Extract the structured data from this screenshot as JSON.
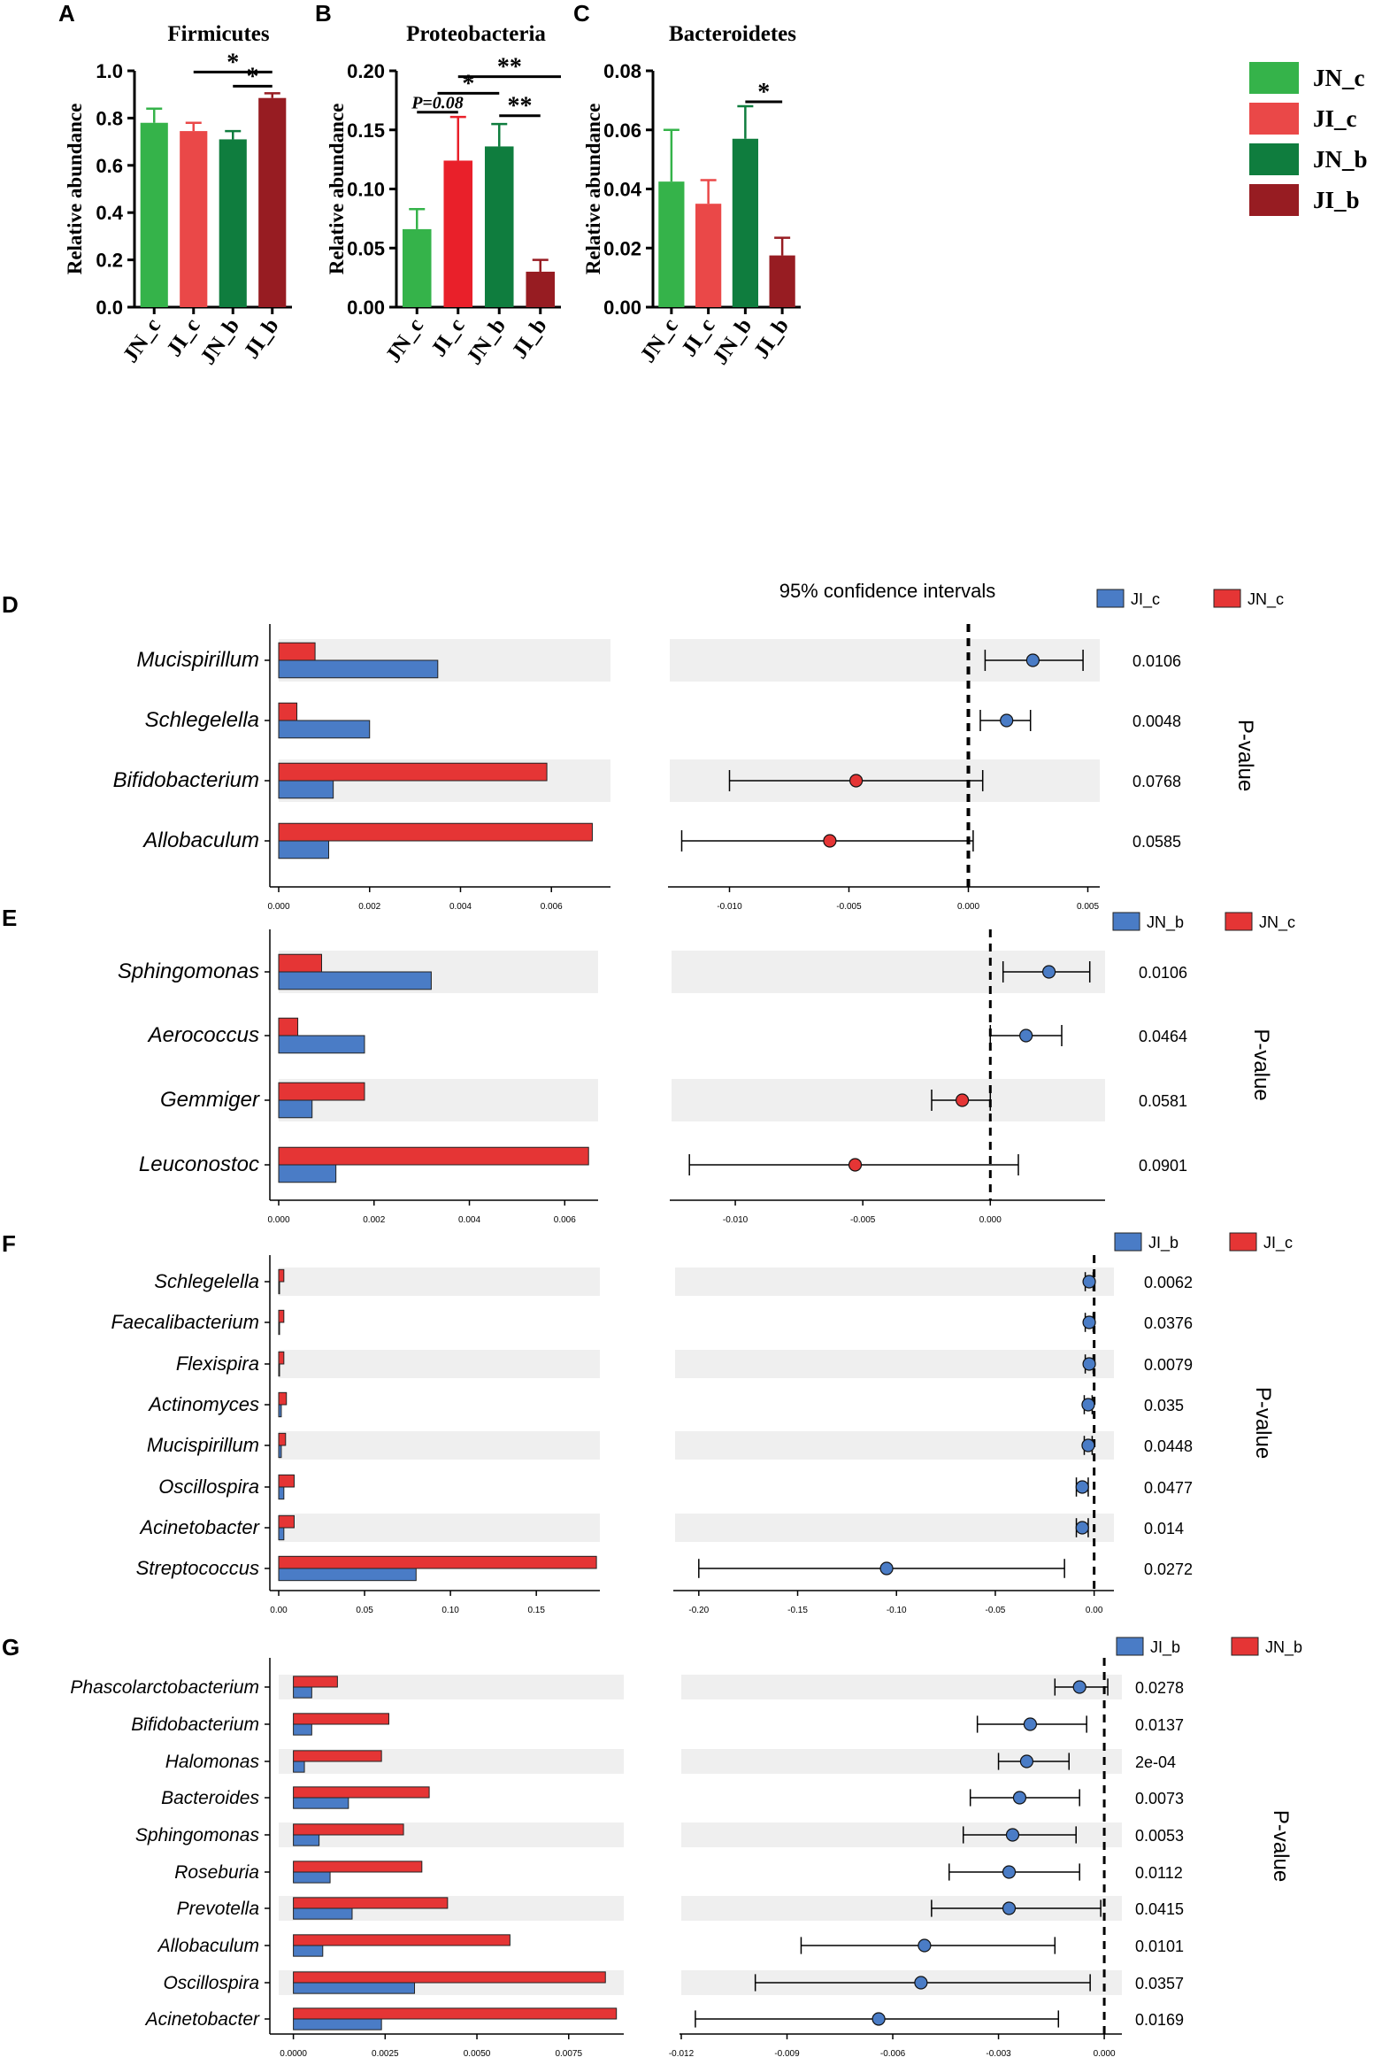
{
  "colors": {
    "JN_c": "#35b34a",
    "JI_c_top": "#ea4848",
    "JI_c_prot": "#e9202a",
    "JN_b": "#0f7d3e",
    "JI_b": "#971c22",
    "blue": "#4a7cc6",
    "red": "#e53535",
    "stripe": "#efefef"
  },
  "legend_top": [
    {
      "label": "JN_c",
      "color": "#35b34a"
    },
    {
      "label": "JI_c",
      "color": "#ea4848"
    },
    {
      "label": "JN_b",
      "color": "#0f7d3e"
    },
    {
      "label": "JI_b",
      "color": "#971c22"
    }
  ],
  "chart_data": [
    {
      "panel": "A",
      "type": "bar",
      "title": "Firmicutes",
      "ylabel": "Relative abundance",
      "categories": [
        "JN_c",
        "JI_c",
        "JN_b",
        "JI_b"
      ],
      "values": [
        0.78,
        0.745,
        0.71,
        0.885
      ],
      "errors": [
        0.06,
        0.035,
        0.035,
        0.02
      ],
      "bar_colors": [
        "#35b34a",
        "#ea4848",
        "#0f7d3e",
        "#971c22"
      ],
      "ylim": [
        0,
        1.0
      ],
      "yticks": [
        "0.0",
        "0.2",
        "0.4",
        "0.6",
        "0.8",
        "1.0"
      ],
      "annotations": [
        {
          "from": 1,
          "to": 3,
          "y": 0.995,
          "text": "*"
        },
        {
          "from": 2,
          "to": 3,
          "y": 0.935,
          "text": "*"
        }
      ]
    },
    {
      "panel": "B",
      "type": "bar",
      "title": "Proteobacteria",
      "ylabel": "Relative abundance",
      "categories": [
        "JN_c",
        "JI_c",
        "JN_b",
        "JI_b"
      ],
      "values": [
        0.066,
        0.124,
        0.136,
        0.03
      ],
      "errors": [
        0.017,
        0.037,
        0.019,
        0.01
      ],
      "bar_colors": [
        "#35b34a",
        "#e9202a",
        "#0f7d3e",
        "#971c22"
      ],
      "ylim": [
        0,
        0.2
      ],
      "yticks": [
        "0.00",
        "0.05",
        "0.10",
        "0.15",
        "0.20"
      ],
      "annotations": [
        {
          "from": 1,
          "to": 3.5,
          "y": 0.195,
          "text": "**"
        },
        {
          "from": 0.5,
          "to": 2,
          "y": 0.181,
          "text": "*"
        },
        {
          "from": 0,
          "to": 1,
          "y": 0.165,
          "text": "P=0.08"
        },
        {
          "from": 2,
          "to": 3,
          "y": 0.162,
          "text": "**"
        }
      ]
    },
    {
      "panel": "C",
      "type": "bar",
      "title": "Bacteroidetes",
      "ylabel": "Relative abundance",
      "categories": [
        "JN_c",
        "JI_c",
        "JN_b",
        "JI_b"
      ],
      "values": [
        0.0425,
        0.035,
        0.057,
        0.0175
      ],
      "errors": [
        0.0175,
        0.008,
        0.011,
        0.006
      ],
      "bar_colors": [
        "#35b34a",
        "#ea4848",
        "#0f7d3e",
        "#971c22"
      ],
      "ylim": [
        0,
        0.08
      ],
      "yticks": [
        "0.00",
        "0.02",
        "0.04",
        "0.06",
        "0.08"
      ],
      "annotations": [
        {
          "from": 2,
          "to": 3,
          "y": 0.0695,
          "text": "*"
        }
      ]
    },
    {
      "panel": "D",
      "type": "bar",
      "ci_title": "95% confidence intervals",
      "legend": [
        "JI_c",
        "JN_c"
      ],
      "p_axis_label": "P-value",
      "taxa": [
        "Mucispirillum",
        "Schlegelella",
        "Bifidobacterium",
        "Allobaculum"
      ],
      "blue_values": [
        0.0035,
        0.002,
        0.0012,
        0.0011
      ],
      "red_values": [
        0.0008,
        0.0004,
        0.0059,
        0.0069
      ],
      "bar_xlim": [
        0,
        0.0073
      ],
      "bar_xticks": [
        "0.000",
        "0.002",
        "0.004",
        "0.006"
      ],
      "bar_xtick_values": [
        0,
        0.002,
        0.004,
        0.006
      ],
      "ci_estimates": [
        0.0027,
        0.0016,
        -0.0047,
        -0.0058
      ],
      "ci_low": [
        0.0007,
        0.0005,
        -0.01,
        -0.012
      ],
      "ci_high": [
        0.0048,
        0.0026,
        0.0006,
        0.0002
      ],
      "ci_xlim": [
        -0.0125,
        0.0055
      ],
      "ci_xticks": [
        "-0.010",
        "-0.005",
        "0.000",
        "0.005"
      ],
      "ci_xtick_values": [
        -0.01,
        -0.005,
        0,
        0.005
      ],
      "p_values": [
        "0.0106",
        "0.0048",
        "0.0768",
        "0.0585"
      ]
    },
    {
      "panel": "E",
      "type": "bar",
      "legend": [
        "JN_b",
        "JN_c"
      ],
      "p_axis_label": "P-value",
      "taxa": [
        "Sphingomonas",
        "Aerococcus",
        "Gemmiger",
        "Leuconostoc"
      ],
      "blue_values": [
        0.0032,
        0.0018,
        0.0007,
        0.0012
      ],
      "red_values": [
        0.0009,
        0.0004,
        0.0018,
        0.0065
      ],
      "bar_xlim": [
        0,
        0.0067
      ],
      "bar_xticks": [
        "0.000",
        "0.002",
        "0.004",
        "0.006"
      ],
      "bar_xtick_values": [
        0,
        0.002,
        0.004,
        0.006
      ],
      "ci_estimates": [
        0.0023,
        0.0014,
        -0.0011,
        -0.0053
      ],
      "ci_low": [
        0.0005,
        0,
        -0.0023,
        -0.0118
      ],
      "ci_high": [
        0.0039,
        0.0028,
        0,
        0.0011
      ],
      "ci_xlim": [
        -0.0125,
        0.0045
      ],
      "ci_xticks": [
        "-0.010",
        "-0.005",
        "0.000"
      ],
      "ci_xtick_values": [
        -0.01,
        -0.005,
        0
      ],
      "p_values": [
        "0.0106",
        "0.0464",
        "0.0581",
        "0.0901"
      ]
    },
    {
      "panel": "F",
      "type": "bar",
      "legend": [
        "JI_b",
        "JI_c"
      ],
      "p_axis_label": "P-value",
      "taxa": [
        "Schlegelella",
        "Faecalibacterium",
        "Flexispira",
        "Actinomyces",
        "Mucispirillum",
        "Oscillospira",
        "Acinetobacter",
        "Streptococcus"
      ],
      "blue_values": [
        0.0005,
        0.0005,
        0.0005,
        0.0015,
        0.0015,
        0.003,
        0.003,
        0.08
      ],
      "red_values": [
        0.003,
        0.003,
        0.003,
        0.0045,
        0.004,
        0.009,
        0.009,
        0.185
      ],
      "bar_xlim": [
        0,
        0.187
      ],
      "bar_xticks": [
        "0.00",
        "0.05",
        "0.10",
        "0.15"
      ],
      "bar_xtick_values": [
        0,
        0.05,
        0.1,
        0.15
      ],
      "ci_estimates": [
        -0.0025,
        -0.0025,
        -0.0025,
        -0.003,
        -0.003,
        -0.006,
        -0.006,
        -0.105
      ],
      "ci_low": [
        -0.0045,
        -0.0045,
        -0.0045,
        -0.005,
        -0.005,
        -0.009,
        -0.009,
        -0.2
      ],
      "ci_high": [
        -0.0005,
        -0.0005,
        -0.0005,
        -0.001,
        -0.001,
        -0.003,
        -0.003,
        -0.015
      ],
      "ci_xlim": [
        -0.212,
        0.01
      ],
      "ci_xticks": [
        "-0.20",
        "-0.15",
        "-0.10",
        "-0.05",
        "0.00"
      ],
      "ci_xtick_values": [
        -0.2,
        -0.15,
        -0.1,
        -0.05,
        0
      ],
      "p_values": [
        "0.0062",
        "0.0376",
        "0.0079",
        "0.035",
        "0.0448",
        "0.0477",
        "0.014",
        "0.0272"
      ]
    },
    {
      "panel": "G",
      "type": "bar",
      "legend": [
        "JI_b",
        "JN_b"
      ],
      "p_axis_label": "P-value",
      "taxa": [
        "Phascolarctobacterium",
        "Bifidobacterium",
        "Halomonas",
        "Bacteroides",
        "Sphingomonas",
        "Roseburia",
        "Prevotella",
        "Allobaculum",
        "Oscillospira",
        "Acinetobacter"
      ],
      "blue_values": [
        0.0005,
        0.0005,
        0.0003,
        0.0015,
        0.0007,
        0.001,
        0.0016,
        0.0008,
        0.0033,
        0.0024
      ],
      "red_values": [
        0.0012,
        0.0026,
        0.0024,
        0.0037,
        0.003,
        0.0035,
        0.0042,
        0.0059,
        0.0085,
        0.0088
      ],
      "bar_xlim": [
        -0.0004,
        0.009
      ],
      "bar_xticks": [
        "0.0000",
        "0.0025",
        "0.0050",
        "0.0075"
      ],
      "bar_xtick_values": [
        0,
        0.0025,
        0.005,
        0.0075
      ],
      "ci_estimates": [
        -0.0007,
        -0.0021,
        -0.0022,
        -0.0024,
        -0.0026,
        -0.0027,
        -0.0027,
        -0.0051,
        -0.0052,
        -0.0064
      ],
      "ci_low": [
        -0.0014,
        -0.0036,
        -0.003,
        -0.0038,
        -0.004,
        -0.0044,
        -0.0049,
        -0.0086,
        -0.0099,
        -0.0116
      ],
      "ci_high": [
        0.0001,
        -0.0005,
        -0.001,
        -0.0007,
        -0.0008,
        -0.0007,
        -0.0001,
        -0.0014,
        -0.0004,
        -0.0013
      ],
      "ci_xlim": [
        -0.012,
        0.0005
      ],
      "ci_xticks": [
        "-0.012",
        "-0.009",
        "-0.006",
        "-0.003",
        "0.000"
      ],
      "ci_xtick_values": [
        -0.012,
        -0.009,
        -0.006,
        -0.003,
        0
      ],
      "p_values": [
        "0.0278",
        "0.0137",
        "2e-04",
        "0.0073",
        "0.0053",
        "0.0112",
        "0.0415",
        "0.0101",
        "0.0357",
        "0.0169"
      ]
    }
  ]
}
